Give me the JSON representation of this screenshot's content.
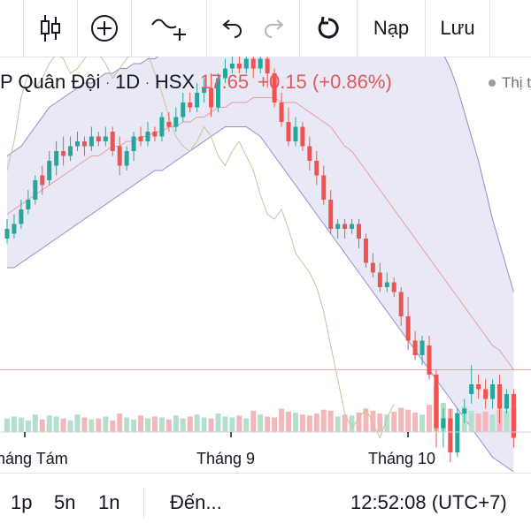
{
  "toolbar": {
    "deposit_label": "Nạp",
    "save_label": "Lưu"
  },
  "legend": {
    "symbol": "P Quân Đội",
    "interval": "1D",
    "exchange": "HSX",
    "price": "17.65",
    "change": "+0.15 (+0.86%)",
    "market_status": "Thị t"
  },
  "x_axis": {
    "labels": [
      "háng Tám",
      "Tháng 9",
      "Tháng 10"
    ]
  },
  "bottom_bar": {
    "range_1": "1p",
    "range_2": "5n",
    "range_3": "1n",
    "goto_label": "Đến...",
    "clock": "12:52:08 (UTC+7)"
  },
  "colors": {
    "up": "#26a69a",
    "down": "#ef5350",
    "band_fill": "#e9e9f6",
    "band_line": "#8c8ccf",
    "ma_line": "#e39a9e",
    "lag_line": "#c7c2a2",
    "price_line": "#d32f2f"
  },
  "chart_data": {
    "type": "candlestick",
    "x_labels": [
      "háng Tám",
      "Tháng 9",
      "Tháng 10"
    ],
    "candles": [
      [
        17.5,
        17.7,
        17.9,
        17.4
      ],
      [
        17.6,
        17.8,
        18.0,
        17.5
      ],
      [
        17.8,
        18.1,
        18.3,
        17.7
      ],
      [
        18.1,
        18.3,
        18.5,
        18.0
      ],
      [
        18.3,
        18.7,
        18.8,
        18.2
      ],
      [
        18.8,
        18.6,
        19.0,
        18.4
      ],
      [
        18.7,
        19.1,
        19.3,
        18.6
      ],
      [
        19.0,
        19.3,
        19.5,
        18.8
      ],
      [
        19.3,
        19.2,
        19.6,
        19.0
      ],
      [
        19.2,
        19.4,
        19.6,
        19.1
      ],
      [
        19.4,
        19.5,
        19.7,
        19.3
      ],
      [
        19.5,
        19.4,
        19.6,
        19.2
      ],
      [
        19.4,
        19.6,
        19.8,
        19.3
      ],
      [
        19.6,
        19.5,
        19.7,
        19.4
      ],
      [
        19.5,
        19.6,
        19.8,
        19.4
      ],
      [
        19.7,
        19.3,
        19.8,
        19.2
      ],
      [
        19.4,
        19.0,
        19.6,
        18.8
      ],
      [
        19.0,
        19.3,
        19.4,
        18.9
      ],
      [
        19.3,
        19.6,
        19.7,
        19.1
      ],
      [
        19.6,
        19.5,
        19.8,
        19.4
      ],
      [
        19.5,
        19.7,
        19.9,
        19.4
      ],
      [
        19.7,
        19.6,
        19.8,
        19.5
      ],
      [
        19.6,
        20.0,
        20.1,
        19.5
      ],
      [
        19.9,
        19.8,
        20.1,
        19.7
      ],
      [
        19.8,
        20.0,
        20.2,
        19.7
      ],
      [
        20.0,
        20.3,
        20.5,
        19.9
      ],
      [
        20.3,
        20.2,
        20.5,
        20.1
      ],
      [
        20.2,
        20.5,
        20.7,
        20.1
      ],
      [
        20.5,
        20.6,
        20.8,
        20.3
      ],
      [
        20.6,
        20.2,
        20.9,
        20.0
      ],
      [
        20.2,
        20.8,
        20.9,
        20.1
      ],
      [
        20.8,
        21.0,
        21.2,
        20.7
      ],
      [
        21.0,
        21.1,
        21.3,
        20.9
      ],
      [
        21.1,
        21.0,
        21.3,
        20.9
      ],
      [
        21.0,
        21.2,
        21.4,
        20.9
      ],
      [
        21.2,
        21.0,
        21.4,
        20.8
      ],
      [
        21.0,
        21.2,
        21.3,
        20.9
      ],
      [
        21.2,
        20.9,
        21.3,
        20.6
      ],
      [
        20.9,
        20.3,
        21.0,
        20.2
      ],
      [
        20.3,
        19.9,
        20.5,
        19.8
      ],
      [
        19.9,
        19.5,
        20.2,
        19.4
      ],
      [
        19.5,
        19.8,
        20.0,
        19.4
      ],
      [
        19.8,
        19.4,
        19.9,
        19.3
      ],
      [
        19.4,
        19.1,
        19.6,
        18.9
      ],
      [
        19.1,
        18.8,
        19.3,
        18.6
      ],
      [
        18.8,
        18.3,
        19.0,
        18.2
      ],
      [
        18.3,
        17.7,
        18.5,
        17.6
      ],
      [
        17.7,
        17.8,
        17.9,
        17.5
      ],
      [
        17.8,
        17.7,
        17.9,
        17.5
      ],
      [
        17.7,
        17.8,
        17.9,
        17.6
      ],
      [
        17.8,
        17.5,
        17.9,
        17.3
      ],
      [
        17.5,
        17.0,
        17.6,
        16.9
      ],
      [
        17.0,
        16.8,
        17.2,
        16.7
      ],
      [
        16.8,
        16.5,
        17.0,
        16.4
      ],
      [
        16.5,
        16.6,
        16.8,
        16.4
      ],
      [
        16.6,
        16.4,
        16.7,
        16.3
      ],
      [
        16.4,
        15.9,
        16.5,
        15.7
      ],
      [
        15.9,
        15.4,
        16.3,
        15.2
      ],
      [
        15.4,
        15.1,
        15.6,
        15.0
      ],
      [
        15.1,
        15.4,
        15.5,
        14.9
      ],
      [
        15.3,
        14.7,
        15.5,
        14.6
      ],
      [
        14.7,
        13.6,
        14.8,
        13.2
      ],
      [
        13.6,
        13.8,
        14.0,
        13.2
      ],
      [
        13.8,
        13.1,
        14.0,
        12.9
      ],
      [
        13.1,
        13.9,
        14.0,
        13.0
      ],
      [
        13.9,
        14.0,
        14.2,
        13.7
      ],
      [
        14.3,
        14.5,
        14.9,
        14.1
      ],
      [
        14.5,
        14.4,
        14.7,
        14.2
      ],
      [
        14.4,
        14.2,
        14.6,
        14.0
      ],
      [
        14.2,
        14.5,
        14.6,
        14.0
      ],
      [
        14.5,
        14.0,
        14.7,
        13.7
      ],
      [
        14.0,
        14.3,
        14.4,
        13.9
      ],
      [
        14.3,
        13.4,
        14.4,
        13.2
      ]
    ],
    "volumes": [
      14,
      16,
      15,
      12,
      18,
      13,
      17,
      16,
      14,
      12,
      18,
      15,
      13,
      14,
      16,
      12,
      19,
      15,
      13,
      17,
      14,
      16,
      15,
      13,
      17,
      14,
      16,
      18,
      15,
      14,
      19,
      16,
      15,
      17,
      14,
      22,
      18,
      16,
      15,
      24,
      21,
      20,
      18,
      17,
      19,
      23,
      22,
      16,
      18,
      17,
      20,
      24,
      22,
      19,
      18,
      21,
      25,
      23,
      20,
      18,
      28,
      46,
      30,
      24,
      20,
      26,
      22,
      19,
      21,
      18,
      23,
      22,
      24
    ],
    "bands": {
      "upper": [
        19.2,
        19.3,
        19.4,
        19.6,
        19.8,
        20.0,
        20.2,
        20.3,
        20.4,
        20.5,
        20.6,
        20.7,
        20.7,
        20.8,
        20.9,
        20.9,
        21.0,
        21.0,
        21.1,
        21.1,
        21.2,
        21.2,
        21.3,
        21.3,
        21.4,
        21.4,
        21.5,
        21.5,
        21.6,
        21.6,
        21.7,
        21.8,
        21.8,
        21.9,
        21.9,
        22.0,
        22.0,
        22.0,
        22.0,
        22.0,
        22.0,
        22.0,
        22.0,
        22.0,
        22.0,
        22.0,
        22.0,
        22.0,
        22.0,
        22.0,
        22.0,
        22.0,
        22.0,
        22.0,
        22.0,
        22.0,
        22.0,
        22.0,
        22.0,
        21.9,
        21.8,
        21.6,
        21.3,
        21.0,
        20.6,
        20.1,
        19.6,
        19.1,
        18.5,
        17.9,
        17.4,
        16.9,
        16.4
      ],
      "middle": [
        18.0,
        18.1,
        18.2,
        18.3,
        18.4,
        18.5,
        18.6,
        18.7,
        18.8,
        18.9,
        19.0,
        19.1,
        19.2,
        19.2,
        19.3,
        19.4,
        19.4,
        19.5,
        19.5,
        19.6,
        19.6,
        19.7,
        19.7,
        19.8,
        19.8,
        19.9,
        19.9,
        20.0,
        20.0,
        20.1,
        20.2,
        20.2,
        20.3,
        20.3,
        20.3,
        20.4,
        20.4,
        20.4,
        20.4,
        20.3,
        20.3,
        20.3,
        20.2,
        20.1,
        20.0,
        19.9,
        19.8,
        19.6,
        19.4,
        19.3,
        19.1,
        18.9,
        18.7,
        18.5,
        18.3,
        18.1,
        17.9,
        17.7,
        17.5,
        17.3,
        17.1,
        16.9,
        16.7,
        16.5,
        16.3,
        16.1,
        15.9,
        15.7,
        15.5,
        15.3,
        15.2,
        15.0,
        14.8
      ],
      "lower": [
        16.9,
        16.9,
        17.0,
        17.1,
        17.2,
        17.3,
        17.4,
        17.5,
        17.6,
        17.7,
        17.8,
        17.9,
        18.0,
        18.1,
        18.2,
        18.3,
        18.4,
        18.5,
        18.6,
        18.7,
        18.8,
        18.9,
        18.9,
        19.0,
        19.1,
        19.2,
        19.3,
        19.4,
        19.5,
        19.6,
        19.7,
        19.8,
        19.8,
        19.8,
        19.8,
        19.7,
        19.6,
        19.4,
        19.2,
        19.0,
        18.8,
        18.6,
        18.4,
        18.2,
        18.0,
        17.8,
        17.6,
        17.4,
        17.2,
        17.0,
        16.8,
        16.6,
        16.4,
        16.2,
        16.0,
        15.8,
        15.6,
        15.4,
        15.2,
        15.0,
        14.8,
        14.6,
        14.4,
        14.2,
        14.0,
        13.8,
        13.6,
        13.4,
        13.2,
        13.0,
        12.9,
        12.8,
        12.7
      ]
    },
    "lag_line": [
      18.9,
      19.5,
      20.4,
      20.9,
      20.6,
      20.8,
      21.1,
      21.3,
      21.2,
      20.9,
      21.0,
      21.2,
      21.4,
      21.3,
      21.1,
      20.8,
      21.0,
      21.2,
      21.4,
      21.5,
      21.3,
      20.9,
      20.5,
      20.0,
      19.6,
      19.4,
      19.3,
      19.5,
      19.8,
      19.6,
      19.2,
      19.0,
      19.3,
      19.5,
      19.2,
      18.9,
      18.4,
      18.0,
      17.9,
      18.1,
      17.7,
      17.2,
      17.0,
      16.8,
      16.5,
      16.0,
      15.3,
      14.6,
      13.9,
      13.6,
      13.8,
      14.0,
      13.7,
      13.4,
      13.8,
      14.1
    ],
    "price_line": 14.8
  }
}
